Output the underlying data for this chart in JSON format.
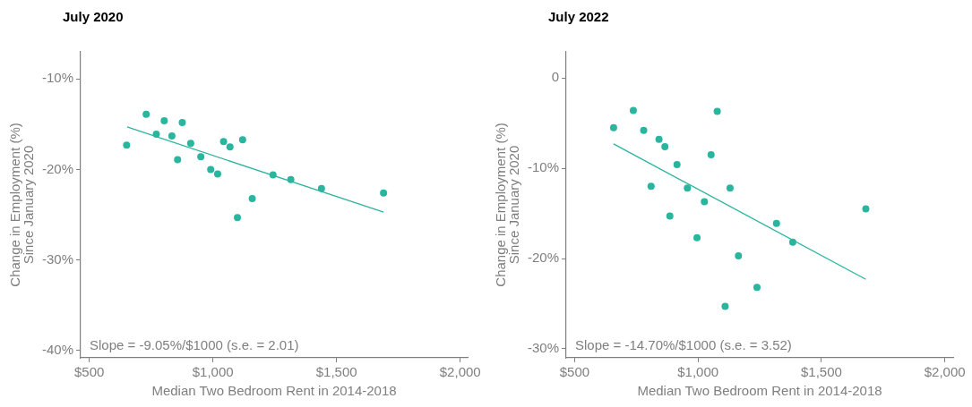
{
  "chart_data": [
    {
      "type": "scatter",
      "title": "July 2020",
      "xlabel": "Median Two Bedroom Rent in 2014-2018",
      "ylabel": "Change in Employment (%)\nSince January 2020",
      "xlim": [
        465,
        2030
      ],
      "xticks": [
        {
          "value": 500,
          "label": "$500"
        },
        {
          "value": 1000,
          "label": "$1,000"
        },
        {
          "value": 1500,
          "label": "$1,500"
        },
        {
          "value": 2000,
          "label": "$2,000"
        }
      ],
      "ylim": [
        -40.8,
        -7
      ],
      "yticks": [
        {
          "value": -10,
          "label": "-10%"
        },
        {
          "value": -20,
          "label": "-20%"
        },
        {
          "value": -30,
          "label": "-30%"
        },
        {
          "value": -40,
          "label": "-40%"
        }
      ],
      "annotations": [
        "Slope = -9.05%/$1000 (s.e. = 2.01)"
      ],
      "series": [
        {
          "marker": "circle",
          "color": "#2ab59f",
          "x": [
            651,
            730,
            803,
            876,
            771,
            834,
            910,
            857,
            951,
            991,
            1019,
            1043,
            1069,
            1120,
            1159,
            1099,
            1243,
            1315,
            1439,
            1690
          ],
          "values": [
            -17.3,
            -13.9,
            -14.6,
            -14.8,
            -16.1,
            -16.3,
            -17.1,
            -18.9,
            -18.6,
            -20.0,
            -20.5,
            -16.9,
            -17.5,
            -16.7,
            -23.2,
            -25.3,
            -20.6,
            -21.1,
            -22.1,
            -22.6
          ]
        },
        {
          "type": "line",
          "marker": "none",
          "color": "#2ab59f",
          "x": [
            653,
            1690
          ],
          "values": [
            -15.3,
            -24.7
          ]
        }
      ]
    },
    {
      "type": "scatter",
      "title": "July 2022",
      "xlabel": "Median Two Bedroom Rent in 2014-2018",
      "ylabel": "Change in Employment (%)\nSince January 2020",
      "xlim": [
        466,
        2034
      ],
      "xticks": [
        {
          "value": 500,
          "label": "$500"
        },
        {
          "value": 1000,
          "label": "$1,000"
        },
        {
          "value": 1500,
          "label": "$1,500"
        },
        {
          "value": 2000,
          "label": "$2,000"
        }
      ],
      "ylim": [
        -31,
        2.9
      ],
      "yticks": [
        0,
        {
          "value": -10,
          "label": "-10%"
        },
        {
          "value": -20,
          "label": "-20%"
        },
        {
          "value": -30,
          "label": "-30%"
        }
      ],
      "annotations": [
        "Slope = -14.70%/$1000 (s.e. = 3.52)"
      ],
      "series": [
        {
          "marker": "circle",
          "color": "#2ab59f",
          "x": [
            658,
            738,
            780,
            842,
            866,
            915,
            810,
            957,
            1026,
            1053,
            1078,
            1130,
            886,
            996,
            1164,
            1239,
            1110,
            1318,
            1384,
            1680
          ],
          "values": [
            -5.5,
            -3.6,
            -5.8,
            -6.8,
            -7.6,
            -9.6,
            -12.0,
            -12.2,
            -13.7,
            -8.5,
            -3.7,
            -12.2,
            -15.3,
            -17.7,
            -19.7,
            -23.2,
            -25.3,
            -16.1,
            -18.2,
            -14.5
          ]
        },
        {
          "type": "line",
          "marker": "none",
          "color": "#2ab59f",
          "x": [
            658,
            1680
          ],
          "values": [
            -7.3,
            -22.3
          ]
        }
      ]
    }
  ]
}
